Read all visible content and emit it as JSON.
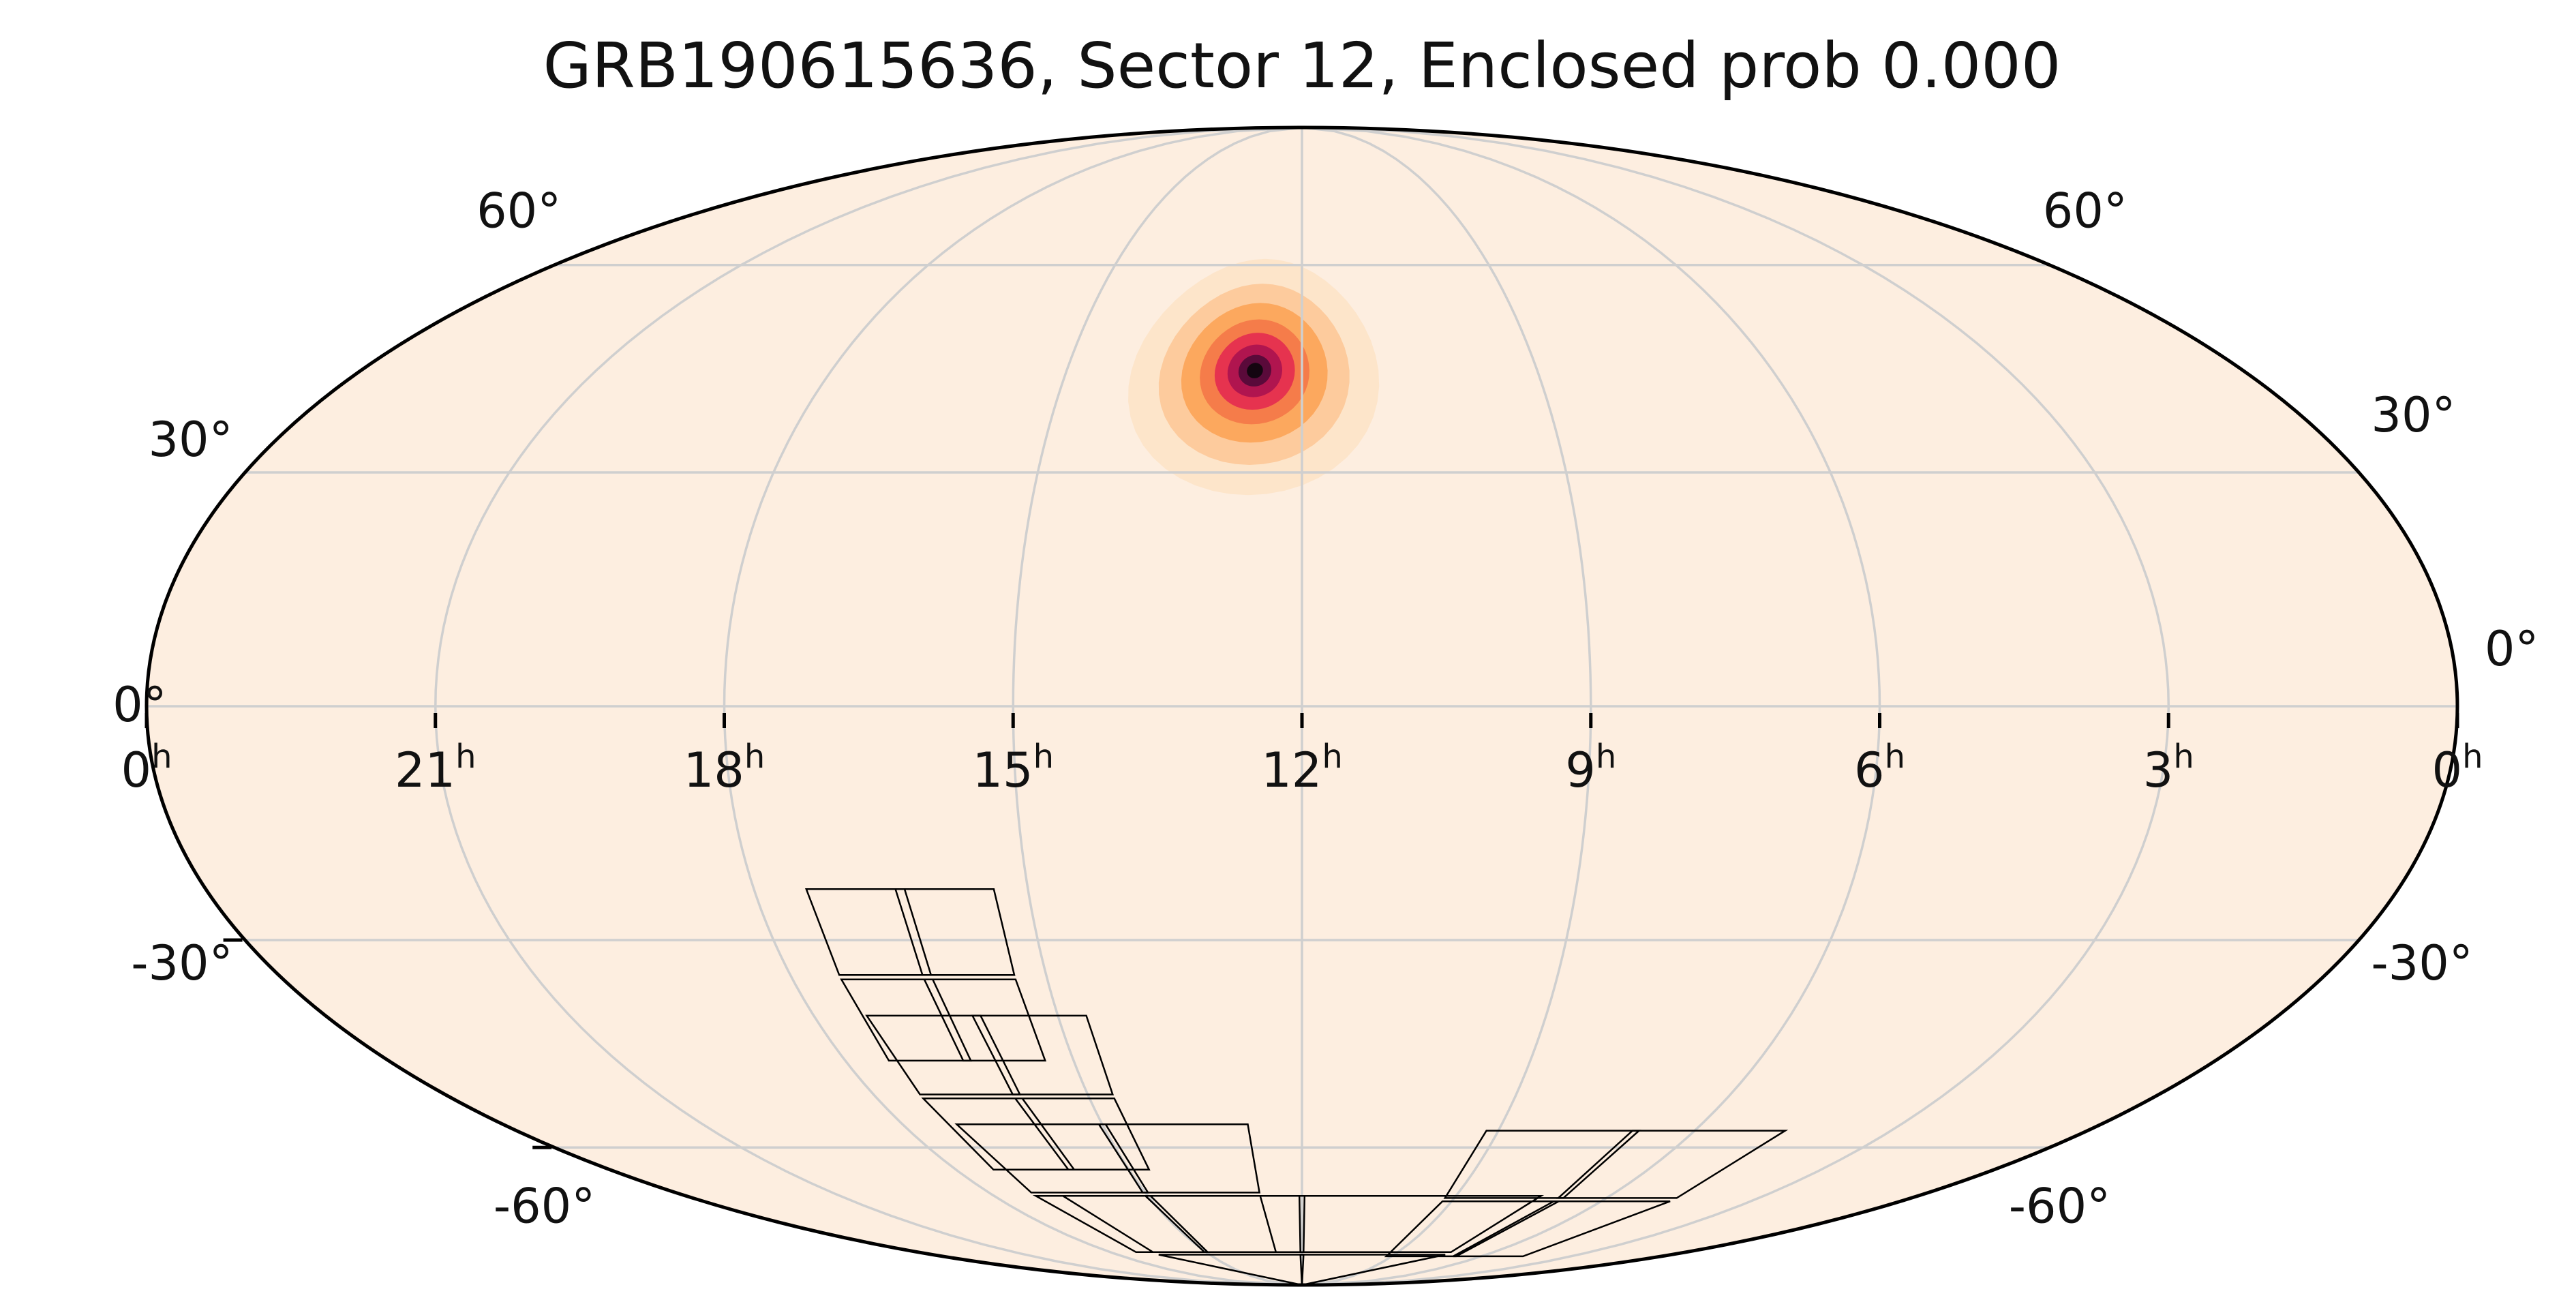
{
  "title": "GRB190615636, Sector 12, Enclosed prob 0.000",
  "chart_data": {
    "type": "heatmap",
    "projection": "mollweide",
    "title": "GRB190615636, Sector 12, Enclosed prob 0.000",
    "ra_range_hours": [
      0,
      24
    ],
    "dec_range_deg": [
      -90,
      90
    ],
    "ra_increases_to_left": true,
    "grid": true,
    "colormap": "light-peach-to-black",
    "colors": {
      "background": "#fdeee0",
      "grid": "#cfcfcf",
      "footprint": "#000000",
      "text": "#111111"
    },
    "ra_ticks": [
      {
        "h": 24,
        "label": "0",
        "sup": "h"
      },
      {
        "h": 21,
        "label": "21",
        "sup": "h"
      },
      {
        "h": 18,
        "label": "18",
        "sup": "h"
      },
      {
        "h": 15,
        "label": "15",
        "sup": "h"
      },
      {
        "h": 12,
        "label": "12",
        "sup": "h"
      },
      {
        "h": 9,
        "label": "9",
        "sup": "h"
      },
      {
        "h": 6,
        "label": "6",
        "sup": "h"
      },
      {
        "h": 3,
        "label": "3",
        "sup": "h"
      },
      {
        "h": 0,
        "label": "0",
        "sup": "h"
      }
    ],
    "dec_ticks": [
      {
        "deg": 60,
        "label": "60°"
      },
      {
        "deg": 30,
        "label": "30°"
      },
      {
        "deg": 0,
        "label": "0°"
      },
      {
        "deg": -30,
        "label": "-30°"
      },
      {
        "deg": -60,
        "label": "-60°"
      }
    ],
    "probability_peak": {
      "ra_h": 12.6,
      "dec_deg": 44,
      "sigma_deg": 5
    },
    "enclosed_prob": "0.000",
    "sector": "12",
    "footprint_camera_centers": [
      {
        "ra_h": 16.4,
        "dec_deg": -35
      },
      {
        "ra_h": 16.0,
        "dec_deg": -52
      },
      {
        "ra_h": 15.0,
        "dec_deg": -68
      },
      {
        "ra_h": 12.0,
        "dec_deg": -80
      },
      {
        "ra_h": 6.9,
        "dec_deg": -69
      }
    ]
  }
}
